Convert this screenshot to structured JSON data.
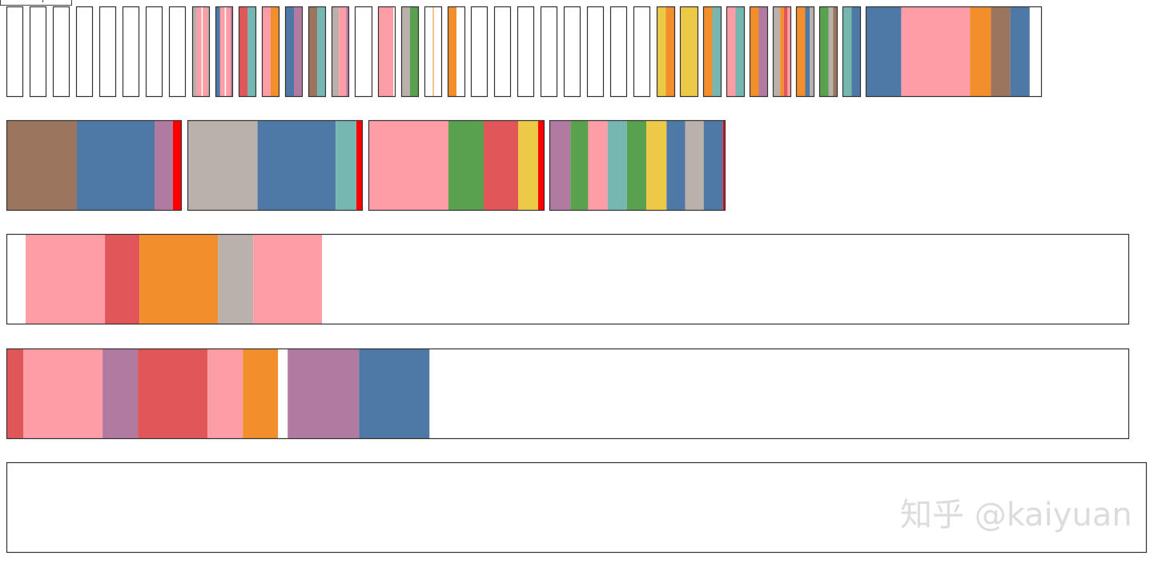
{
  "palette": {
    "W": "#ffffff",
    "B": "#4e79a7",
    "O": "#f28e2b",
    "R": "#e15759",
    "T": "#76b7b2",
    "G": "#59a14f",
    "Y": "#edc948",
    "P": "#b07aa1",
    "K": "#ff9da7",
    "N": "#9c755f",
    "S": "#bab0ac",
    "X": "#ff0000"
  },
  "rows": [
    {
      "name": "row-1",
      "boxes": [
        [
          [
            "W",
            1
          ]
        ],
        [
          [
            "W",
            1
          ]
        ],
        [
          [
            "W",
            1
          ]
        ],
        [
          [
            "W",
            1
          ]
        ],
        [
          [
            "W",
            1
          ]
        ],
        [
          [
            "W",
            1
          ]
        ],
        [
          [
            "W",
            1
          ]
        ],
        [
          [
            "W",
            1
          ]
        ],
        [
          [
            "S",
            1
          ],
          [
            "K",
            1
          ],
          [
            "W",
            0.25
          ],
          [
            "K",
            1
          ],
          [
            "S",
            0.5
          ]
        ],
        [
          [
            "B",
            1
          ],
          [
            "K",
            1
          ],
          [
            "W",
            0.25
          ],
          [
            "K",
            1
          ],
          [
            "P",
            0.5
          ]
        ],
        [
          [
            "R",
            1
          ],
          [
            "T",
            1
          ]
        ],
        [
          [
            "K",
            1
          ],
          [
            "O",
            1
          ]
        ],
        [
          [
            "B",
            1
          ],
          [
            "P",
            1
          ]
        ],
        [
          [
            "N",
            1
          ],
          [
            "T",
            1
          ]
        ],
        [
          [
            "S",
            1
          ],
          [
            "K",
            1
          ],
          [
            "P",
            0.4
          ]
        ],
        [
          [
            "W",
            1
          ]
        ],
        [
          [
            "K",
            2
          ],
          [
            "W",
            0.3
          ]
        ],
        [
          [
            "S",
            1
          ],
          [
            "G",
            1
          ]
        ],
        [
          [
            "W",
            1
          ],
          [
            "O",
            0.1
          ],
          [
            "W",
            1
          ]
        ],
        [
          [
            "O",
            1
          ],
          [
            "W",
            1
          ]
        ],
        [
          [
            "W",
            1
          ]
        ],
        [
          [
            "W",
            1
          ]
        ],
        [
          [
            "W",
            1
          ]
        ],
        [
          [
            "W",
            1
          ]
        ],
        [
          [
            "W",
            1
          ]
        ],
        [
          [
            "W",
            1
          ]
        ],
        [
          [
            "W",
            1
          ]
        ],
        [
          [
            "W",
            1
          ]
        ],
        [
          [
            "Y",
            1
          ],
          [
            "O",
            1
          ]
        ],
        [
          [
            "Y",
            1
          ],
          [
            "Y",
            1
          ]
        ],
        [
          [
            "O",
            1
          ],
          [
            "T",
            1
          ]
        ],
        [
          [
            "K",
            1
          ],
          [
            "T",
            1
          ]
        ],
        [
          [
            "O",
            1
          ],
          [
            "P",
            1
          ]
        ],
        [
          [
            "S",
            1
          ],
          [
            "O",
            0.5
          ],
          [
            "R",
            0.5
          ],
          [
            "K",
            0.5
          ]
        ],
        [
          [
            "O",
            1
          ],
          [
            "B",
            0.5
          ],
          [
            "S",
            0.5
          ]
        ],
        [
          [
            "G",
            1
          ],
          [
            "S",
            0.5
          ],
          [
            "N",
            0.5
          ]
        ],
        [
          [
            "T",
            1
          ],
          [
            "B",
            1
          ]
        ],
        [
          [
            "B",
            44
          ],
          [
            "K",
            85
          ],
          [
            "O",
            26
          ],
          [
            "N",
            24
          ],
          [
            "B",
            24
          ],
          [
            "W",
            15
          ]
        ]
      ]
    },
    {
      "name": "row-2",
      "boxes": [
        [
          [
            "N",
            43
          ],
          [
            "N",
            45
          ],
          [
            "B",
            97
          ],
          [
            "P",
            23
          ],
          [
            "X",
            11
          ]
        ],
        [
          [
            "S",
            88
          ],
          [
            "B",
            98
          ],
          [
            "T",
            26
          ],
          [
            "X",
            8
          ]
        ],
        [
          [
            "K",
            100
          ],
          [
            "G",
            44
          ],
          [
            "R",
            43
          ],
          [
            "Y",
            25
          ],
          [
            "X",
            8
          ]
        ],
        [
          [
            "P",
            26
          ],
          [
            "G",
            22
          ],
          [
            "K",
            24
          ],
          [
            "T",
            24
          ],
          [
            "G",
            24
          ],
          [
            "Y",
            25
          ],
          [
            "B",
            23
          ],
          [
            "S",
            23
          ],
          [
            "B",
            24
          ],
          [
            "X",
            3
          ]
        ]
      ]
    },
    {
      "name": "row-3",
      "boxes": [
        [
          [
            "W",
            24
          ],
          [
            "K",
            99
          ],
          [
            "R",
            43
          ],
          [
            "O",
            98
          ],
          [
            "S",
            44
          ],
          [
            "K",
            86
          ],
          [
            "W",
            1007
          ]
        ]
      ]
    },
    {
      "name": "row-4",
      "boxes": [
        [
          [
            "R",
            21
          ],
          [
            "K",
            99
          ],
          [
            "P",
            44
          ],
          [
            "R",
            87
          ],
          [
            "K",
            44
          ],
          [
            "O",
            44
          ],
          [
            "W",
            12
          ],
          [
            "P",
            89
          ],
          [
            "B",
            88
          ],
          [
            "W",
            873
          ]
        ]
      ]
    },
    {
      "name": "row-5",
      "boxes": [
        [
          [
            "W",
            1
          ]
        ]
      ]
    }
  ],
  "watermark": "知乎 @kaiyuan"
}
